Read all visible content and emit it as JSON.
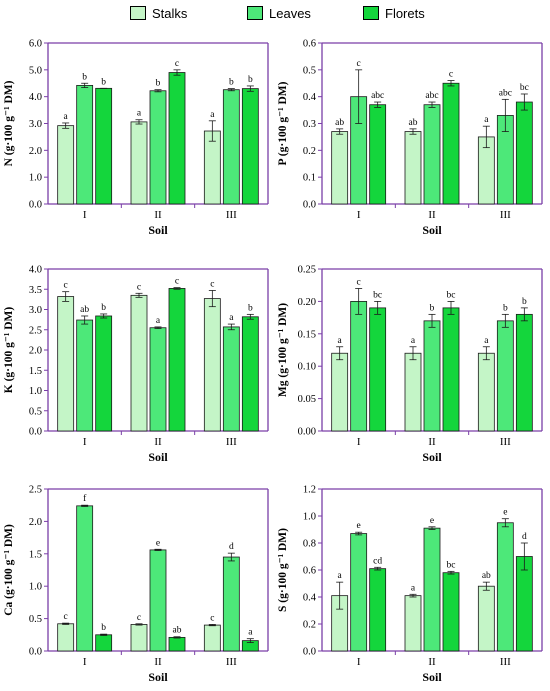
{
  "legend": {
    "items": [
      {
        "label": "Stalks",
        "color": "#c4f5c7"
      },
      {
        "label": "Leaves",
        "color": "#4de879"
      },
      {
        "label": "Florets",
        "color": "#14d63c"
      }
    ]
  },
  "colors": {
    "frame": "#7a3fa8",
    "edge": "#1a1a1a"
  },
  "chart_data": [
    {
      "type": "bar",
      "ylabel": "N (g·100 g⁻¹ DM)",
      "xlabel": "Soil",
      "categories": [
        "I",
        "II",
        "III"
      ],
      "ylim": [
        0,
        6.0
      ],
      "yticks": [
        "0.0",
        "1.0",
        "2.0",
        "3.0",
        "4.0",
        "5.0",
        "6.0"
      ],
      "series": [
        {
          "name": "Stalks",
          "values": [
            2.92,
            3.06,
            2.72
          ],
          "errors": [
            0.1,
            0.08,
            0.38
          ],
          "labels": [
            "a",
            "a",
            "a"
          ]
        },
        {
          "name": "Leaves",
          "values": [
            4.42,
            4.22,
            4.26
          ],
          "errors": [
            0.08,
            0.04,
            0.04
          ],
          "labels": [
            "b",
            "b",
            "b"
          ]
        },
        {
          "name": "Florets",
          "values": [
            4.31,
            4.9,
            4.3
          ],
          "errors": [
            0.0,
            0.1,
            0.1
          ],
          "labels": [
            "b",
            "c",
            "b"
          ]
        }
      ]
    },
    {
      "type": "bar",
      "ylabel": "P (g·100 g⁻¹ DM)",
      "xlabel": "Soil",
      "categories": [
        "I",
        "II",
        "III"
      ],
      "ylim": [
        0,
        0.6
      ],
      "yticks": [
        "0.0",
        "0.1",
        "0.2",
        "0.3",
        "0.4",
        "0.5",
        "0.6"
      ],
      "series": [
        {
          "name": "Stalks",
          "values": [
            0.27,
            0.27,
            0.25
          ],
          "errors": [
            0.01,
            0.01,
            0.04
          ],
          "labels": [
            "ab",
            "ab",
            "a"
          ]
        },
        {
          "name": "Leaves",
          "values": [
            0.4,
            0.37,
            0.33
          ],
          "errors": [
            0.1,
            0.01,
            0.06
          ],
          "labels": [
            "c",
            "abc",
            "abc"
          ]
        },
        {
          "name": "Florets",
          "values": [
            0.37,
            0.45,
            0.38
          ],
          "errors": [
            0.01,
            0.01,
            0.03
          ],
          "labels": [
            "abc",
            "c",
            "bc"
          ]
        }
      ]
    },
    {
      "type": "bar",
      "ylabel": "K (g·100 g⁻¹ DM)",
      "xlabel": "Soil",
      "categories": [
        "I",
        "II",
        "III"
      ],
      "ylim": [
        0,
        4.0
      ],
      "yticks": [
        "0.0",
        "0.5",
        "1.0",
        "1.5",
        "2.0",
        "2.5",
        "3.0",
        "3.5",
        "4.0"
      ],
      "series": [
        {
          "name": "Stalks",
          "values": [
            3.32,
            3.35,
            3.27
          ],
          "errors": [
            0.12,
            0.05,
            0.2
          ],
          "labels": [
            "c",
            "c",
            "c"
          ]
        },
        {
          "name": "Leaves",
          "values": [
            2.74,
            2.55,
            2.57
          ],
          "errors": [
            0.1,
            0.02,
            0.07
          ],
          "labels": [
            "ab",
            "a",
            "a"
          ]
        },
        {
          "name": "Florets",
          "values": [
            2.84,
            3.52,
            2.82
          ],
          "errors": [
            0.05,
            0.02,
            0.06
          ],
          "labels": [
            "b",
            "c",
            "b"
          ]
        }
      ]
    },
    {
      "type": "bar",
      "ylabel": "Mg (g·100 g⁻¹ DM)",
      "xlabel": "Soil",
      "categories": [
        "I",
        "II",
        "III"
      ],
      "ylim": [
        0,
        0.25
      ],
      "yticks": [
        "0.00",
        "0.05",
        "0.10",
        "0.15",
        "0.20",
        "0.25"
      ],
      "series": [
        {
          "name": "Stalks",
          "values": [
            0.12,
            0.12,
            0.12
          ],
          "errors": [
            0.01,
            0.01,
            0.01
          ],
          "labels": [
            "a",
            "a",
            "a"
          ]
        },
        {
          "name": "Leaves",
          "values": [
            0.2,
            0.17,
            0.17
          ],
          "errors": [
            0.02,
            0.01,
            0.01
          ],
          "labels": [
            "c",
            "b",
            "b"
          ]
        },
        {
          "name": "Florets",
          "values": [
            0.19,
            0.19,
            0.18
          ],
          "errors": [
            0.01,
            0.01,
            0.01
          ],
          "labels": [
            "bc",
            "bc",
            "b"
          ]
        }
      ]
    },
    {
      "type": "bar",
      "ylabel": "Ca (g·100 g⁻¹ DM)",
      "xlabel": "Soil",
      "categories": [
        "I",
        "II",
        "III"
      ],
      "ylim": [
        0,
        2.5
      ],
      "yticks": [
        "0.0",
        "0.5",
        "1.0",
        "1.5",
        "2.0",
        "2.5"
      ],
      "series": [
        {
          "name": "Stalks",
          "values": [
            0.42,
            0.41,
            0.4
          ],
          "errors": [
            0.01,
            0.01,
            0.01
          ],
          "labels": [
            "c",
            "c",
            "c"
          ]
        },
        {
          "name": "Leaves",
          "values": [
            2.24,
            1.56,
            1.45
          ],
          "errors": [
            0.01,
            0.01,
            0.06
          ],
          "labels": [
            "f",
            "e",
            "d"
          ]
        },
        {
          "name": "Florets",
          "values": [
            0.25,
            0.21,
            0.16
          ],
          "errors": [
            0.01,
            0.01,
            0.03
          ],
          "labels": [
            "b",
            "ab",
            "a"
          ]
        }
      ]
    },
    {
      "type": "bar",
      "ylabel": "S (g·100 g⁻¹ DM)",
      "xlabel": "Soil",
      "categories": [
        "I",
        "II",
        "III"
      ],
      "ylim": [
        0,
        1.2
      ],
      "yticks": [
        "0.0",
        "0.2",
        "0.4",
        "0.6",
        "0.8",
        "1.0",
        "1.2"
      ],
      "series": [
        {
          "name": "Stalks",
          "values": [
            0.41,
            0.41,
            0.48
          ],
          "errors": [
            0.1,
            0.01,
            0.03
          ],
          "labels": [
            "a",
            "a",
            "ab"
          ]
        },
        {
          "name": "Leaves",
          "values": [
            0.87,
            0.91,
            0.95
          ],
          "errors": [
            0.01,
            0.01,
            0.03
          ],
          "labels": [
            "e",
            "e",
            "e"
          ]
        },
        {
          "name": "Florets",
          "values": [
            0.61,
            0.58,
            0.7
          ],
          "errors": [
            0.01,
            0.01,
            0.1
          ],
          "labels": [
            "cd",
            "bc",
            "d"
          ]
        }
      ]
    }
  ]
}
